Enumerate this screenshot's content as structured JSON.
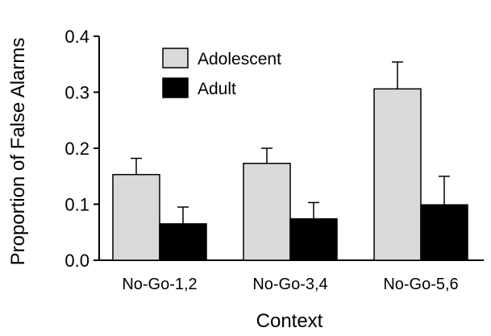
{
  "chart_data": {
    "type": "bar",
    "categories": [
      "No-Go-1,2",
      "No-Go-3,4",
      "No-Go-5,6"
    ],
    "series": [
      {
        "name": "Adolescent",
        "values": [
          0.153,
          0.173,
          0.306
        ],
        "error_upper": [
          0.182,
          0.2,
          0.354
        ],
        "color": "#d9d9d9"
      },
      {
        "name": "Adult",
        "values": [
          0.065,
          0.074,
          0.099
        ],
        "error_upper": [
          0.095,
          0.103,
          0.15
        ],
        "color": "#000000"
      }
    ],
    "xlabel": "Context",
    "ylabel": "Proportion of False Alarms",
    "ylim": [
      0,
      0.4
    ],
    "yticks": [
      "0.0",
      "0.1",
      "0.2",
      "0.3",
      "0.4"
    ],
    "legend_position": "top-left",
    "grid": false
  }
}
